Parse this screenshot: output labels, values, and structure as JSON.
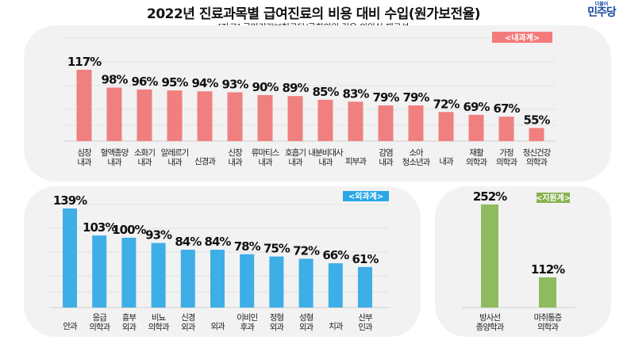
{
  "title": "2022년 진료과목별 급여진료의 비용 대비 수입(원가보전율)",
  "source": "[자료] 국민건강보험공단/국회의원 김윤 의원실 재구성",
  "logo": {
    "small": "더불어",
    "big": "민주당"
  },
  "chart_data": [
    {
      "type": "bar",
      "tag": "<내과계>",
      "color": "#f08080",
      "tag_color": "#f47b7b",
      "unit": "%",
      "ylim": [
        41,
        117
      ],
      "grid": true,
      "categories": [
        [
          "심장",
          "내과"
        ],
        [
          "혈액종양",
          "내과"
        ],
        [
          "소화기",
          "내과"
        ],
        [
          "알레르기",
          "내과"
        ],
        [
          "신경과"
        ],
        [
          "신장",
          "내과"
        ],
        [
          "류마티스",
          "내과"
        ],
        [
          "호흡기",
          "내과"
        ],
        [
          "내분비대사",
          "내과"
        ],
        [
          "피부과"
        ],
        [
          "감염",
          "내과"
        ],
        [
          "소아",
          "청소년과"
        ],
        [
          "내과"
        ],
        [
          "재활",
          "의학과"
        ],
        [
          "가정",
          "의학과"
        ],
        [
          "정신건강",
          "의학과"
        ]
      ],
      "values": [
        117,
        98,
        96,
        95,
        94,
        93,
        90,
        89,
        85,
        83,
        79,
        79,
        72,
        69,
        67,
        55
      ]
    },
    {
      "type": "bar",
      "tag": "<외과계>",
      "color": "#3daee6",
      "tag_color": "#2aa7e6",
      "unit": "%",
      "ylim": [
        7,
        139
      ],
      "grid": true,
      "categories": [
        [
          "안과"
        ],
        [
          "응급",
          "의학과"
        ],
        [
          "흉부",
          "외과"
        ],
        [
          "비뇨",
          "의학과"
        ],
        [
          "신경",
          "외과"
        ],
        [
          "외과"
        ],
        [
          "이비인",
          "후과"
        ],
        [
          "정형",
          "외과"
        ],
        [
          "성형",
          "외과"
        ],
        [
          "치과"
        ],
        [
          "산부",
          "인과"
        ]
      ],
      "values": [
        139,
        103,
        100,
        93,
        84,
        84,
        78,
        75,
        72,
        66,
        61
      ]
    },
    {
      "type": "bar",
      "tag": "<지원계>",
      "color": "#8fbb5f",
      "tag_color": "#86b24f",
      "unit": "%",
      "ylim": [
        54,
        252
      ],
      "grid": true,
      "categories": [
        [
          "방사선",
          "종양학과"
        ],
        [
          "마취통증",
          "의학과"
        ]
      ],
      "values": [
        252,
        112
      ]
    }
  ]
}
